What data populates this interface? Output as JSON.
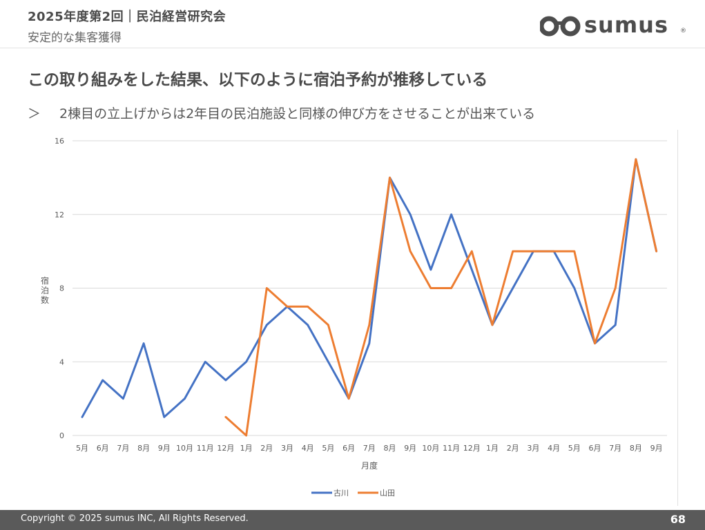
{
  "header": {
    "title": "2025年度第2回｜民泊経営研究会",
    "subtitle": "安定的な集客獲得",
    "logo_text": "sumus",
    "logo_mark": "®"
  },
  "headline": "この取り組みをした結果、以下のように宿泊予約が推移している",
  "bullet": {
    "mark": "＞",
    "text": "2棟目の立上げからは2年目の民泊施設と同様の伸び方をさせることが出来ている"
  },
  "colors": {
    "series_blue": "#4472C4",
    "series_orange": "#ED7D31",
    "grid": "#d9d9d9",
    "footer_bg": "#5a5a5a"
  },
  "chart_data": {
    "type": "line",
    "title": "",
    "xlabel": "月度",
    "ylabel": "宿泊数",
    "ylim": [
      0,
      16
    ],
    "yticks": [
      0,
      4,
      8,
      12,
      16
    ],
    "grid": true,
    "legend_position": "bottom",
    "categories": [
      "5月",
      "6月",
      "7月",
      "8月",
      "9月",
      "10月",
      "11月",
      "12月",
      "1月",
      "2月",
      "3月",
      "4月",
      "5月",
      "6月",
      "7月",
      "8月",
      "9月",
      "10月",
      "11月",
      "12月",
      "1月",
      "2月",
      "3月",
      "4月",
      "5月",
      "6月",
      "7月",
      "8月",
      "9月"
    ],
    "series": [
      {
        "name": "古川",
        "color": "#4472C4",
        "values": [
          1,
          3,
          2,
          5,
          1,
          2,
          4,
          3,
          4,
          6,
          7,
          6,
          4,
          2,
          5,
          14,
          12,
          9,
          12,
          9,
          6,
          8,
          10,
          10,
          8,
          5,
          6,
          15,
          10
        ]
      },
      {
        "name": "山田",
        "color": "#ED7D31",
        "values": [
          null,
          null,
          null,
          null,
          null,
          null,
          null,
          1,
          0,
          8,
          7,
          7,
          6,
          2,
          6,
          14,
          10,
          8,
          8,
          10,
          6,
          10,
          10,
          10,
          10,
          5,
          8,
          15,
          10
        ]
      }
    ]
  },
  "footer": {
    "copyright": "Copyright © 2025 sumus INC, All Rights Reserved.",
    "page_number": "68"
  }
}
